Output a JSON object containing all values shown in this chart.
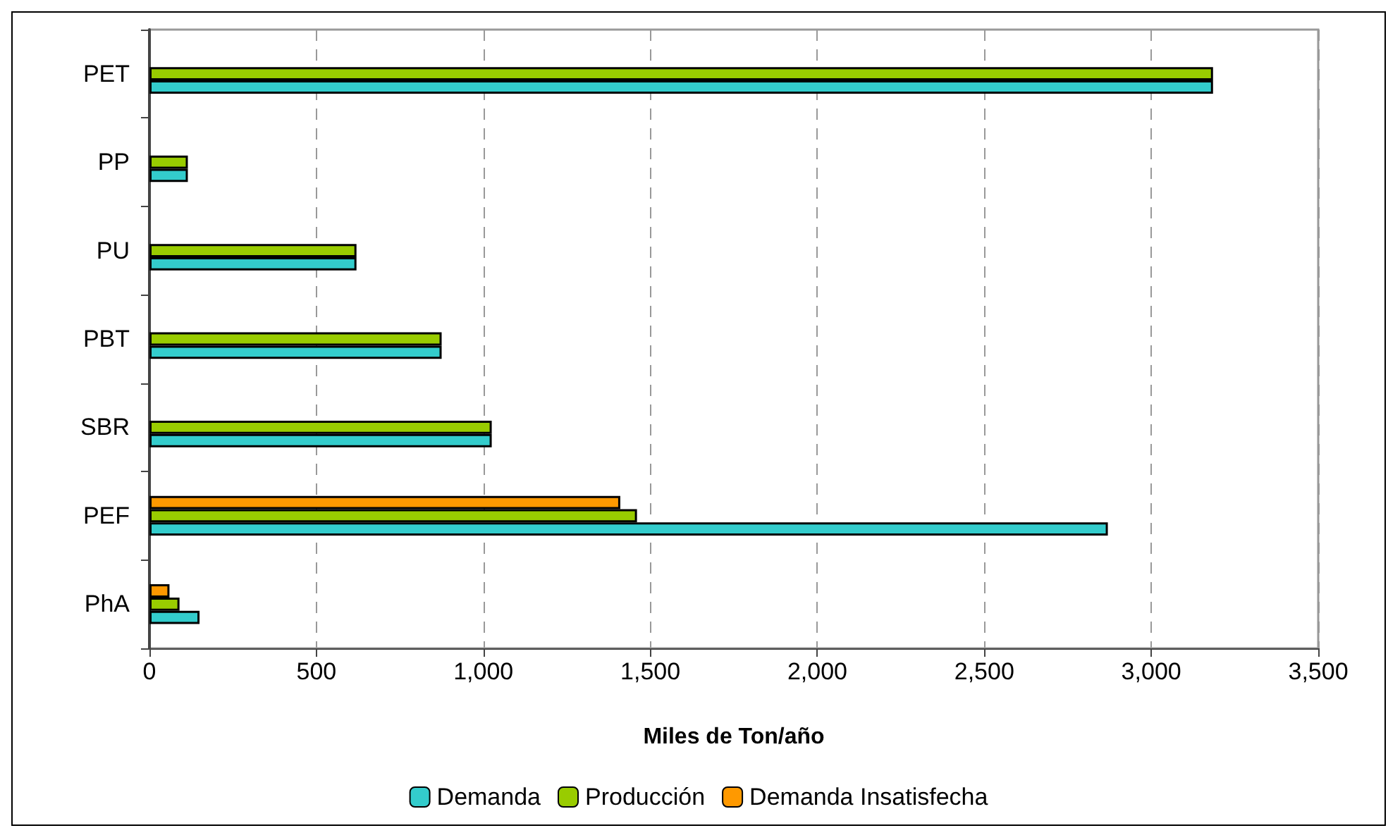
{
  "chart_data": {
    "type": "bar",
    "orientation": "horizontal",
    "xlabel": "Miles de Ton/año",
    "categories": [
      "PET",
      "PP",
      "PU",
      "PBT",
      "SBR",
      "PEF",
      "PhA"
    ],
    "series": [
      {
        "name": "Demanda",
        "color": "#33cccc",
        "values": [
          3185,
          115,
          620,
          875,
          1025,
          2870,
          150
        ]
      },
      {
        "name": "Producción",
        "color": "#99cc00",
        "values": [
          3185,
          115,
          620,
          875,
          1025,
          1460,
          90
        ]
      },
      {
        "name": "Demanda Insatisfecha",
        "color": "#ff9900",
        "values": [
          null,
          null,
          null,
          null,
          null,
          1410,
          60
        ]
      }
    ],
    "xlim": [
      0,
      3500
    ],
    "xticks": [
      0,
      500,
      {
        "value": 1000,
        "label": "1,000"
      },
      {
        "value": 1500,
        "label": "1,500"
      },
      {
        "value": 2000,
        "label": "2,000"
      },
      {
        "value": 2500,
        "label": "2,500"
      },
      {
        "value": 3000,
        "label": "3,000"
      },
      {
        "value": 3500,
        "label": "3,500"
      }
    ],
    "grid": "x",
    "legend": "bottom"
  }
}
